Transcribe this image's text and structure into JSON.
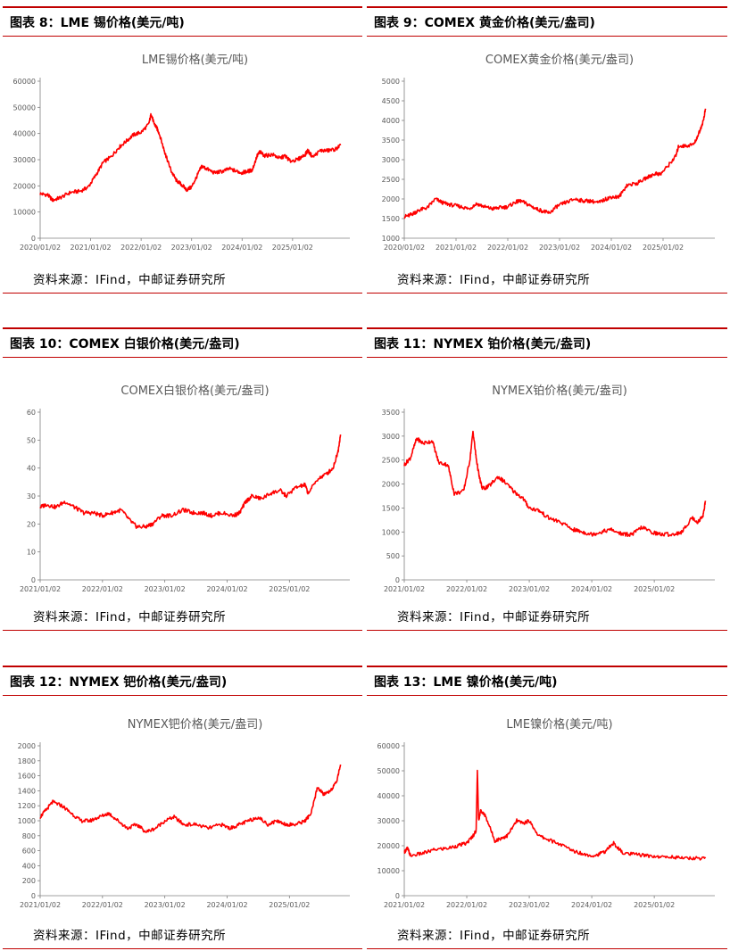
{
  "colors": {
    "accent": "#c00000",
    "series": "#ff0000"
  },
  "panels": [
    {
      "id": "tin",
      "label": "图表 8：LME 锡价格(美元/吨)",
      "source": "资料来源：IFind，中邮证券研究所",
      "chart_data": {
        "type": "line",
        "title": "LME锡价格(美元/吨)",
        "x_ticks": [
          "2020/01/02",
          "2021/01/02",
          "2022/01/02",
          "2023/01/02",
          "2024/01/02",
          "2025/01/02"
        ],
        "y_ticks": [
          0,
          10000,
          20000,
          30000,
          40000,
          50000,
          60000
        ],
        "ylim": [
          0,
          60000
        ],
        "xlim": [
          2020.0,
          2025.95
        ],
        "series": [
          {
            "name": "LME锡",
            "x": [
              2020.0,
              2020.15,
              2020.25,
              2020.4,
              2020.6,
              2020.8,
              2020.95,
              2021.1,
              2021.25,
              2021.4,
              2021.55,
              2021.7,
              2021.85,
              2022.0,
              2022.15,
              2022.2,
              2022.25,
              2022.3,
              2022.35,
              2022.45,
              2022.5,
              2022.6,
              2022.7,
              2022.8,
              2022.9,
              2023.0,
              2023.1,
              2023.2,
              2023.3,
              2023.45,
              2023.6,
              2023.75,
              2023.9,
              2024.0,
              2024.1,
              2024.2,
              2024.3,
              2024.35,
              2024.45,
              2024.6,
              2024.75,
              2024.85,
              2024.95,
              2025.1,
              2025.25,
              2025.3,
              2025.4,
              2025.55,
              2025.7,
              2025.85,
              2025.95
            ],
            "y": [
              17000,
              16500,
              14500,
              15500,
              17500,
              18000,
              19500,
              24000,
              29000,
              31000,
              34500,
              37000,
              39500,
              40500,
              43500,
              47500,
              44000,
              42500,
              40500,
              34000,
              31000,
              25500,
              22000,
              20500,
              18500,
              19500,
              23500,
              27500,
              26500,
              25000,
              25500,
              26500,
              25500,
              25000,
              25500,
              26000,
              31500,
              33000,
              31500,
              32000,
              30500,
              31500,
              29500,
              30000,
              32000,
              33500,
              31000,
              33500,
              33500,
              34000,
              35500
            ]
          }
        ]
      }
    },
    {
      "id": "gold",
      "label": "图表 9：COMEX 黄金价格(美元/盎司)",
      "source": "资料来源：IFind，中邮证券研究所",
      "chart_data": {
        "type": "line",
        "title": "COMEX黄金价格(美元/盎司)",
        "x_ticks": [
          "2020/01/02",
          "2021/01/02",
          "2022/01/02",
          "2023/01/02",
          "2024/01/02",
          "2025/01/02"
        ],
        "y_ticks": [
          1000,
          1500,
          2000,
          2500,
          3000,
          3500,
          4000,
          4500,
          5000
        ],
        "ylim": [
          1000,
          5000
        ],
        "xlim": [
          2020.0,
          2025.82
        ],
        "series": [
          {
            "name": "COMEX黄金",
            "x": [
              2020.0,
              2020.1,
              2020.2,
              2020.3,
              2020.45,
              2020.6,
              2020.75,
              2020.9,
              2021.1,
              2021.25,
              2021.4,
              2021.55,
              2021.7,
              2021.85,
              2022.0,
              2022.15,
              2022.25,
              2022.4,
              2022.55,
              2022.7,
              2022.8,
              2022.95,
              2023.1,
              2023.3,
              2023.45,
              2023.6,
              2023.75,
              2023.9,
              2024.0,
              2024.15,
              2024.3,
              2024.5,
              2024.7,
              2024.85,
              2024.95,
              2025.1,
              2025.25,
              2025.3,
              2025.45,
              2025.6,
              2025.7,
              2025.78,
              2025.82
            ],
            "y": [
              1550,
              1580,
              1650,
              1720,
              1780,
              2000,
              1900,
              1850,
              1800,
              1750,
              1880,
              1800,
              1750,
              1780,
              1800,
              1920,
              1950,
              1850,
              1750,
              1680,
              1640,
              1810,
              1900,
              2000,
              1950,
              1950,
              1900,
              2000,
              2050,
              2050,
              2350,
              2400,
              2550,
              2650,
              2630,
              2850,
              3100,
              3350,
              3350,
              3400,
              3700,
              4000,
              4300
            ]
          }
        ]
      }
    },
    {
      "id": "silver",
      "label": "图表 10：COMEX 白银价格(美元/盎司)",
      "source": "资料来源：IFind，中邮证券研究所",
      "chart_data": {
        "type": "line",
        "title": "COMEX白银价格(美元/盎司)",
        "x_ticks": [
          "2021/01/02",
          "2022/01/02",
          "2023/01/02",
          "2024/01/02",
          "2025/01/02"
        ],
        "y_ticks": [
          0,
          10,
          20,
          30,
          40,
          50,
          60
        ],
        "ylim": [
          0,
          60
        ],
        "xlim": [
          2021.0,
          2025.82
        ],
        "series": [
          {
            "name": "COMEX白银",
            "x": [
              2021.0,
              2021.1,
              2021.25,
              2021.4,
              2021.55,
              2021.7,
              2021.85,
              2022.0,
              2022.15,
              2022.3,
              2022.45,
              2022.55,
              2022.7,
              2022.8,
              2022.95,
              2023.1,
              2023.3,
              2023.45,
              2023.6,
              2023.75,
              2023.9,
              2024.1,
              2024.2,
              2024.3,
              2024.4,
              2024.55,
              2024.7,
              2024.85,
              2024.95,
              2025.1,
              2025.25,
              2025.3,
              2025.45,
              2025.6,
              2025.7,
              2025.78,
              2025.82
            ],
            "y": [
              26,
              27,
              26,
              28,
              26,
              24,
              24,
              23,
              24,
              25,
              21,
              19,
              19,
              20,
              23,
              23,
              25,
              24,
              24,
              23,
              24,
              23,
              24,
              28,
              30,
              29,
              31,
              32,
              30,
              33,
              34,
              31,
              36,
              38,
              40,
              46,
              52
            ]
          }
        ]
      }
    },
    {
      "id": "platinum",
      "label": "图表 11：NYMEX 铂价格(美元/盎司)",
      "source": "资料来源：IFind，中邮证券研究所",
      "chart_data": {
        "type": "line",
        "title": "NYMEX铂价格(美元/盎司)",
        "x_ticks": [
          "2021/01/02",
          "2022/01/02",
          "2023/01/02",
          "2024/01/02",
          "2025/01/02"
        ],
        "y_ticks": [
          0,
          500,
          1000,
          1500,
          2000,
          2500,
          3000,
          3500
        ],
        "ylim": [
          0,
          3500
        ],
        "xlim": [
          2021.0,
          2025.82
        ],
        "series": [
          {
            "name": "NYMEX铂",
            "x": [
              2021.0,
              2021.1,
              2021.2,
              2021.3,
              2021.45,
              2021.55,
              2021.7,
              2021.8,
              2021.95,
              2022.05,
              2022.1,
              2022.15,
              2022.2,
              2022.25,
              2022.35,
              2022.5,
              2022.6,
              2022.75,
              2022.9,
              2023.0,
              2023.15,
              2023.3,
              2023.5,
              2023.7,
              2023.85,
              2024.0,
              2024.15,
              2024.3,
              2024.5,
              2024.65,
              2024.8,
              2024.95,
              2025.1,
              2025.3,
              2025.45,
              2025.6,
              2025.7,
              2025.78,
              2025.82
            ],
            "y": [
              2400,
              2550,
              2950,
              2850,
              2900,
              2450,
              2400,
              1800,
              1850,
              2500,
              3100,
              2550,
              2150,
              1900,
              1950,
              2150,
              2050,
              1850,
              1700,
              1500,
              1450,
              1300,
              1200,
              1050,
              1000,
              950,
              1000,
              1050,
              950,
              950,
              1100,
              1000,
              950,
              950,
              1000,
              1300,
              1200,
              1350,
              1650
            ]
          }
        ]
      }
    },
    {
      "id": "palladium",
      "label": "图表 12：NYMEX 钯价格(美元/盎司)",
      "source": "资料来源：IFind，中邮证券研究所",
      "chart_data": {
        "type": "line",
        "title": "NYMEX钯价格(美元/盎司)",
        "x_ticks": [
          "2021/01/02",
          "2022/01/02",
          "2023/01/02",
          "2024/01/02",
          "2025/01/02"
        ],
        "y_ticks": [
          0,
          200,
          400,
          600,
          800,
          1000,
          1200,
          1400,
          1600,
          1800,
          2000
        ],
        "ylim": [
          0,
          2000
        ],
        "xlim": [
          2021.0,
          2025.82
        ],
        "series": [
          {
            "name": "NYMEX钯",
            "x": [
              2021.0,
              2021.1,
              2021.2,
              2021.35,
              2021.5,
              2021.65,
              2021.8,
              2021.95,
              2022.1,
              2022.25,
              2022.4,
              2022.55,
              2022.7,
              2022.85,
              2023.0,
              2023.15,
              2023.3,
              2023.5,
              2023.7,
              2023.9,
              2024.05,
              2024.2,
              2024.35,
              2024.5,
              2024.65,
              2024.8,
              2024.95,
              2025.1,
              2025.25,
              2025.35,
              2025.45,
              2025.55,
              2025.65,
              2025.75,
              2025.82
            ],
            "y": [
              1050,
              1150,
              1250,
              1200,
              1100,
              1000,
              1000,
              1050,
              1100,
              1000,
              900,
              950,
              850,
              900,
              1000,
              1050,
              950,
              950,
              900,
              950,
              900,
              950,
              1000,
              1050,
              950,
              1000,
              950,
              950,
              1000,
              1100,
              1450,
              1350,
              1400,
              1500,
              1750
            ]
          }
        ]
      }
    },
    {
      "id": "nickel",
      "label": "图表 13：LME 镍价格(美元/吨)",
      "source": "资料来源：IFind，中邮证券研究所",
      "chart_data": {
        "type": "line",
        "title": "LME镍价格(美元/吨)",
        "x_ticks": [
          "2021/01/02",
          "2022/01/02",
          "2023/01/02",
          "2024/01/02",
          "2025/01/02"
        ],
        "y_ticks": [
          0,
          10000,
          20000,
          30000,
          40000,
          50000,
          60000
        ],
        "ylim": [
          0,
          60000
        ],
        "xlim": [
          2021.0,
          2025.82
        ],
        "series": [
          {
            "name": "LME镍",
            "x": [
              2021.0,
              2021.05,
              2021.1,
              2021.3,
              2021.5,
              2021.7,
              2021.85,
              2022.0,
              2022.1,
              2022.15,
              2022.17,
              2022.19,
              2022.22,
              2022.3,
              2022.45,
              2022.55,
              2022.65,
              2022.8,
              2022.9,
              2023.0,
              2023.15,
              2023.3,
              2023.5,
              2023.7,
              2023.9,
              2024.05,
              2024.2,
              2024.35,
              2024.5,
              2024.7,
              2024.9,
              2025.1,
              2025.3,
              2025.5,
              2025.7,
              2025.82
            ],
            "y": [
              17500,
              19000,
              16000,
              17000,
              18500,
              19000,
              20000,
              21000,
              24000,
              26000,
              50000,
              30000,
              34000,
              32000,
              22000,
              23000,
              24000,
              30000,
              29000,
              30000,
              24000,
              22500,
              20500,
              18000,
              16500,
              16000,
              17500,
              21000,
              17000,
              16500,
              16000,
              15500,
              15500,
              15000,
              15000,
              15000
            ]
          }
        ]
      }
    }
  ]
}
